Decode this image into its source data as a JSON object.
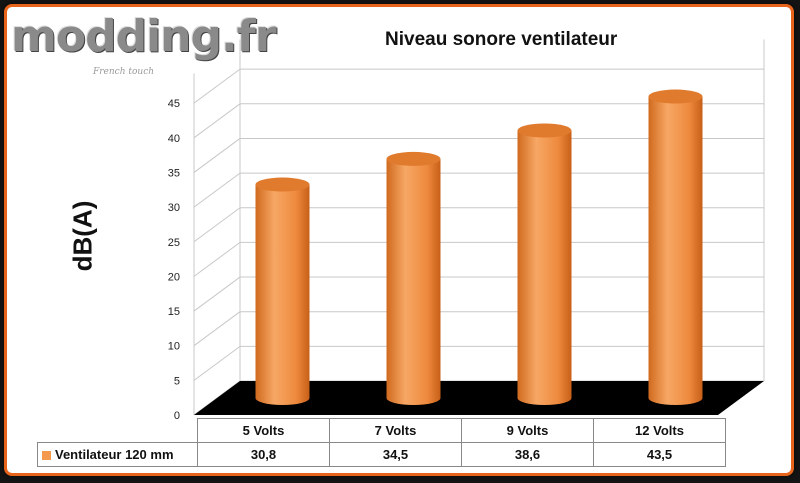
{
  "logo": {
    "text": "modding.fr",
    "tagline": "French touch"
  },
  "chart_data": {
    "type": "bar",
    "title": "Niveau sonore ventilateur",
    "ylabel": "dB(A)",
    "xlabel": "",
    "categories": [
      "5 Volts",
      "7 Volts",
      "9 Volts",
      "12 Volts"
    ],
    "series": [
      {
        "name": "Ventilateur 120 mm",
        "values": [
          30.8,
          34.5,
          38.6,
          43.5
        ],
        "display_values": [
          "30,8",
          "34,5",
          "38,6",
          "43,5"
        ]
      }
    ],
    "yticks": [
      0,
      5,
      10,
      15,
      20,
      25,
      30,
      35,
      40,
      45
    ],
    "ylim": [
      0,
      50
    ],
    "grid": true,
    "style": "3d-cylinder",
    "bar_color": "#f39a4e",
    "floor_color": "#000000",
    "frame_color": "#e8641b"
  }
}
